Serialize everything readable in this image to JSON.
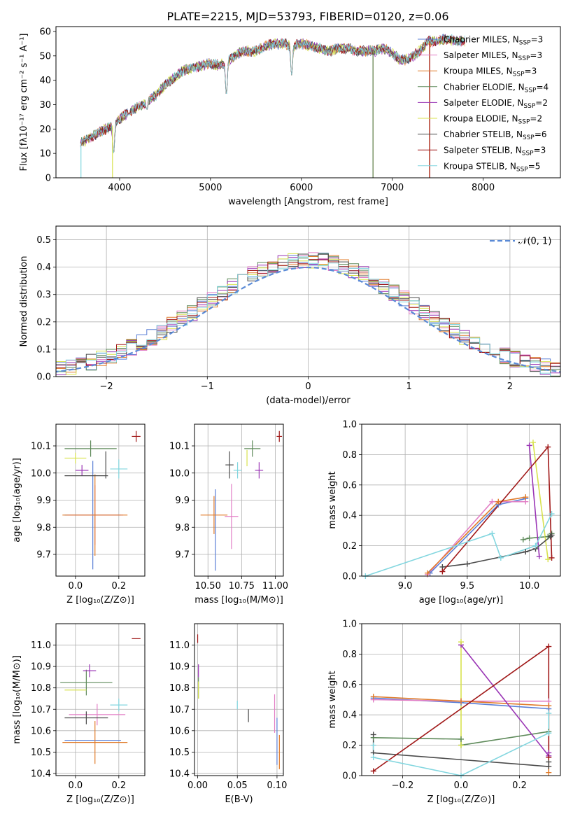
{
  "title": "PLATE=2215, MJD=53793, FIBERID=0120, z=0.06",
  "colors": {
    "Chabrier MILES": "#5a7fd6",
    "Salpeter MILES": "#e27fc6",
    "Kroupa MILES": "#e07b2a",
    "Chabrier ELODIE": "#5e8a5a",
    "Salpeter ELODIE": "#9a35b5",
    "Kroupa ELODIE": "#d8e24e",
    "Chabrier STELIB": "#4a4a4a",
    "Salpeter STELIB": "#a01818",
    "Kroupa STELIB": "#82d6df"
  },
  "chart_data": [
    {
      "id": "spectrum",
      "type": "line",
      "xlabel": "wavelength [Angstrom, rest frame]",
      "ylabel": "Flux [fλ10⁻¹⁷ erg cm⁻² s⁻¹ A⁻¹]",
      "xlim": [
        3300,
        8850
      ],
      "ylim": [
        0,
        62
      ],
      "xticks": [
        4000,
        5000,
        6000,
        7000,
        8000
      ],
      "yticks": [
        0,
        10,
        20,
        30,
        40,
        50,
        60
      ],
      "grid": false,
      "legend": "right",
      "legend_entries": [
        {
          "model": "Chabrier MILES",
          "nssp": "3"
        },
        {
          "model": "Salpeter MILES",
          "nssp": "3"
        },
        {
          "model": "Kroupa MILES",
          "nssp": "3"
        },
        {
          "model": "Chabrier ELODIE",
          "nssp": "4"
        },
        {
          "model": "Salpeter ELODIE",
          "nssp": "2"
        },
        {
          "model": "Kroupa ELODIE",
          "nssp": "2"
        },
        {
          "model": "Chabrier STELIB",
          "nssp": "6"
        },
        {
          "model": "Salpeter STELIB",
          "nssp": "3"
        },
        {
          "model": "Kroupa STELIB",
          "nssp": "5"
        }
      ],
      "continuum": {
        "x": [
          3570,
          3650,
          3750,
          3850,
          3950,
          4000,
          4100,
          4200,
          4300,
          4400,
          4500,
          4600,
          4700,
          4800,
          4900,
          5000,
          5100,
          5200,
          5300,
          5400,
          5500,
          5600,
          5700,
          5800,
          5900,
          6000,
          6100,
          6200,
          6300,
          6400,
          6500,
          6600,
          6700,
          6800,
          6900,
          7000,
          7100,
          7200,
          7300,
          7400,
          7500,
          7600,
          7700,
          7800
        ],
        "y": [
          14,
          16,
          18,
          20,
          22,
          24,
          27,
          29,
          31,
          34,
          38,
          41,
          44,
          45,
          46,
          47,
          46,
          48,
          51,
          52,
          52,
          54,
          55,
          55,
          54,
          55,
          54,
          53,
          52,
          53,
          53,
          52,
          52,
          52,
          53,
          51,
          48,
          49,
          52,
          56,
          56,
          57,
          56,
          56
        ]
      },
      "absorption_features": [
        {
          "x": 3934,
          "y": 10
        },
        {
          "x": 4102,
          "y": 26
        },
        {
          "x": 4300,
          "y": 28
        },
        {
          "x": 5175,
          "y": 34
        },
        {
          "x": 5893,
          "y": 42
        }
      ],
      "spikes": [
        {
          "model": "Kroupa STELIB",
          "x": 3575,
          "y_min": 0
        },
        {
          "model": "Kroupa ELODIE",
          "x": 3922,
          "y_min": 0
        },
        {
          "model": "Kroupa MILES",
          "x": 6788,
          "y_min": 0
        },
        {
          "model": "Chabrier ELODIE",
          "x": 6788,
          "y_min": 0
        },
        {
          "model": "Kroupa MILES",
          "x": 7410,
          "y_min": 0
        },
        {
          "model": "Salpeter STELIB",
          "x": 7412,
          "y_min": 0
        }
      ]
    },
    {
      "id": "residuals",
      "type": "histogram",
      "xlabel": "(data-model)/error",
      "ylabel": "Normed distribution",
      "xlim": [
        -2.5,
        2.5
      ],
      "ylim": [
        0,
        0.55
      ],
      "xticks": [
        -2,
        -1,
        0,
        1,
        2
      ],
      "yticks": [
        0,
        0.1,
        0.2,
        0.3,
        0.4,
        0.5
      ],
      "grid": true,
      "bin_width": 0.1,
      "reference_label": "𝒩(0, 1)",
      "reference_curve": {
        "mean": 0,
        "sigma": 1
      }
    },
    {
      "id": "age-vs-Z",
      "type": "errorbar",
      "xlabel": "Z [log₁₀(Z/Z⊙)]",
      "ylabel": "age  [log₁₀(age/yr)]",
      "xlim": [
        -0.09,
        0.32
      ],
      "ylim": [
        9.62,
        10.18
      ],
      "xticks": [
        0.0,
        0.2
      ],
      "yticks": [
        9.7,
        9.8,
        9.9,
        10.0,
        10.1
      ],
      "grid": true,
      "points": [
        {
          "model": "Chabrier MILES",
          "x": 0.08,
          "xerr": 0.13,
          "y": 9.845,
          "yerr": 0.2
        },
        {
          "model": "Salpeter MILES",
          "x": 0.09,
          "xerr": 0.13,
          "y": 9.845,
          "yerr": 0.11
        },
        {
          "model": "Kroupa MILES",
          "x": 0.09,
          "xerr": 0.15,
          "y": 9.845,
          "yerr": 0.15
        },
        {
          "model": "Chabrier ELODIE",
          "x": 0.07,
          "xerr": 0.12,
          "y": 10.09,
          "yerr": 0.03
        },
        {
          "model": "Salpeter ELODIE",
          "x": 0.03,
          "xerr": 0.03,
          "y": 10.01,
          "yerr": 0.02
        },
        {
          "model": "Kroupa ELODIE",
          "x": 0.0,
          "xerr": 0.05,
          "y": 10.055,
          "yerr": 0.02
        },
        {
          "model": "Chabrier STELIB",
          "x": 0.05,
          "xerr": 0.1,
          "y": 9.99,
          "yerr": 0.0
        },
        {
          "model": "Chabrier STELIB",
          "x": 0.14,
          "xerr": 0.0,
          "y": 10.03,
          "yerr": 0.05
        },
        {
          "model": "Salpeter STELIB",
          "x": 0.28,
          "xerr": 0.02,
          "y": 10.135,
          "yerr": 0.02
        },
        {
          "model": "Kroupa STELIB",
          "x": 0.2,
          "xerr": 0.04,
          "y": 10.015,
          "yerr": 0.035
        }
      ]
    },
    {
      "id": "age-vs-mass",
      "type": "errorbar",
      "xlabel": "mass [log₁₀(M/M⊙)]",
      "ylabel": "",
      "xlim": [
        10.4,
        11.06
      ],
      "ylim": [
        9.62,
        10.18
      ],
      "xticks": [
        10.5,
        10.75,
        11.0
      ],
      "yticks": [
        9.7,
        9.8,
        9.9,
        10.0,
        10.1
      ],
      "grid": true,
      "points": [
        {
          "model": "Chabrier MILES",
          "x": 10.555,
          "xerr": 0.0,
          "y": 9.79,
          "yerr": 0.15
        },
        {
          "model": "Salpeter MILES",
          "x": 10.675,
          "xerr": 0.05,
          "y": 9.84,
          "yerr": 0.12
        },
        {
          "model": "Kroupa MILES",
          "x": 10.545,
          "xerr": 0.1,
          "y": 9.845,
          "yerr": 0.07
        },
        {
          "model": "Chabrier ELODIE",
          "x": 10.83,
          "xerr": 0.06,
          "y": 10.09,
          "yerr": 0.03
        },
        {
          "model": "Salpeter ELODIE",
          "x": 10.88,
          "xerr": 0.03,
          "y": 10.01,
          "yerr": 0.03
        },
        {
          "model": "Kroupa ELODIE",
          "x": 10.79,
          "xerr": 0.0,
          "y": 10.055,
          "yerr": 0.03
        },
        {
          "model": "Chabrier STELIB",
          "x": 10.66,
          "xerr": 0.03,
          "y": 10.03,
          "yerr": 0.05
        },
        {
          "model": "Salpeter STELIB",
          "x": 11.03,
          "xerr": 0.02,
          "y": 10.135,
          "yerr": 0.02
        },
        {
          "model": "Kroupa STELIB",
          "x": 10.72,
          "xerr": 0.03,
          "y": 10.01,
          "yerr": 0.03
        }
      ]
    },
    {
      "id": "mass-weight-vs-age",
      "type": "line",
      "xlabel": "age  [log₁₀(age/yr)]",
      "ylabel": "mass weight",
      "xlim": [
        8.65,
        10.25
      ],
      "ylim": [
        0,
        1.0
      ],
      "xticks": [
        9.0,
        9.5,
        10.0
      ],
      "yticks": [
        0.0,
        0.2,
        0.4,
        0.6,
        0.8,
        1.0
      ],
      "grid": true,
      "series": [
        {
          "model": "Chabrier MILES",
          "x": [
            9.2,
            9.75,
            9.97
          ],
          "y": [
            0.02,
            0.47,
            0.51
          ]
        },
        {
          "model": "Salpeter MILES",
          "x": [
            9.18,
            9.7,
            9.97
          ],
          "y": [
            0.01,
            0.49,
            0.49
          ]
        },
        {
          "model": "Kroupa MILES",
          "x": [
            9.18,
            9.75,
            9.97
          ],
          "y": [
            0.02,
            0.49,
            0.52
          ]
        },
        {
          "model": "Chabrier ELODIE",
          "x": [
            9.95,
            10.0,
            10.15,
            10.18
          ],
          "y": [
            0.24,
            0.25,
            0.26,
            0.28
          ]
        },
        {
          "model": "Salpeter ELODIE",
          "x": [
            10.0,
            10.08
          ],
          "y": [
            0.86,
            0.13
          ]
        },
        {
          "model": "Kroupa ELODIE",
          "x": [
            10.03,
            10.15
          ],
          "y": [
            0.88,
            0.11
          ]
        },
        {
          "model": "Chabrier STELIB",
          "x": [
            9.3,
            9.5,
            9.97,
            10.05,
            10.17,
            10.18
          ],
          "y": [
            0.06,
            0.08,
            0.16,
            0.18,
            0.26,
            0.27
          ]
        },
        {
          "model": "Salpeter STELIB",
          "x": [
            9.3,
            10.15,
            10.18
          ],
          "y": [
            0.03,
            0.85,
            0.12
          ]
        },
        {
          "model": "Kroupa STELIB",
          "x": [
            8.68,
            9.7,
            9.77,
            10.05,
            10.18
          ],
          "y": [
            0.0,
            0.28,
            0.12,
            0.2,
            0.41
          ]
        }
      ]
    },
    {
      "id": "mass-vs-Z",
      "type": "errorbar",
      "xlabel": "Z [log₁₀(Z/Z⊙)]",
      "ylabel": "mass [log₁₀(M/M⊙)]",
      "xlim": [
        -0.09,
        0.32
      ],
      "ylim": [
        10.39,
        11.1
      ],
      "xticks": [
        0.0,
        0.2
      ],
      "yticks": [
        10.4,
        10.5,
        10.6,
        10.7,
        10.8,
        10.9,
        11.0
      ],
      "grid": true,
      "points": [
        {
          "model": "Chabrier MILES",
          "x": 0.08,
          "xerr": 0.13,
          "y": 10.555,
          "yerr": 0.0
        },
        {
          "model": "Salpeter MILES",
          "x": 0.1,
          "xerr": 0.13,
          "y": 10.675,
          "yerr": 0.05
        },
        {
          "model": "Kroupa MILES",
          "x": 0.09,
          "xerr": 0.15,
          "y": 10.545,
          "yerr": 0.1
        },
        {
          "model": "Chabrier ELODIE",
          "x": 0.05,
          "xerr": 0.12,
          "y": 10.825,
          "yerr": 0.06
        },
        {
          "model": "Salpeter ELODIE",
          "x": 0.065,
          "xerr": 0.03,
          "y": 10.88,
          "yerr": 0.03
        },
        {
          "model": "Kroupa ELODIE",
          "x": 0.0,
          "xerr": 0.05,
          "y": 10.79,
          "yerr": 0.0
        },
        {
          "model": "Chabrier STELIB",
          "x": 0.05,
          "xerr": 0.1,
          "y": 10.66,
          "yerr": 0.03
        },
        {
          "model": "Salpeter STELIB",
          "x": 0.28,
          "xerr": 0.02,
          "y": 11.03,
          "yerr": 0.0
        },
        {
          "model": "Kroupa STELIB",
          "x": 0.2,
          "xerr": 0.04,
          "y": 10.72,
          "yerr": 0.03
        }
      ]
    },
    {
      "id": "mass-vs-EBV",
      "type": "errorbar",
      "xlabel": "E(B-V)",
      "ylabel": "",
      "xlim": [
        -0.004,
        0.108
      ],
      "ylim": [
        10.39,
        11.1
      ],
      "xticks": [
        0.0,
        0.05,
        0.1
      ],
      "yticks": [
        10.4,
        10.5,
        10.6,
        10.7,
        10.8,
        10.9,
        11.0
      ],
      "grid": true,
      "points": [
        {
          "model": "Chabrier MILES",
          "x": 0.1,
          "xerr": 0.0,
          "y": 10.55,
          "yerr": 0.11
        },
        {
          "model": "Salpeter MILES",
          "x": 0.097,
          "xerr": 0.0,
          "y": 10.68,
          "yerr": 0.09
        },
        {
          "model": "Kroupa MILES",
          "x": 0.103,
          "xerr": 0.0,
          "y": 10.5,
          "yerr": 0.08
        },
        {
          "model": "Chabrier ELODIE",
          "x": 0.001,
          "xerr": 0.0,
          "y": 10.8,
          "yerr": 0.05
        },
        {
          "model": "Salpeter ELODIE",
          "x": 0.001,
          "xerr": 0.0,
          "y": 10.88,
          "yerr": 0.03
        },
        {
          "model": "Kroupa ELODIE",
          "x": 0.001,
          "xerr": 0.0,
          "y": 10.79,
          "yerr": 0.04
        },
        {
          "model": "Chabrier STELIB",
          "x": 0.064,
          "xerr": 0.0,
          "y": 10.67,
          "yerr": 0.03
        },
        {
          "model": "Salpeter STELIB",
          "x": 0.0,
          "xerr": 0.0,
          "y": 11.03,
          "yerr": 0.02
        },
        {
          "model": "Kroupa STELIB",
          "x": 0.05,
          "xerr": 0.0,
          "y": 10.72,
          "yerr": 0.02
        }
      ]
    },
    {
      "id": "mass-weight-vs-Z",
      "type": "line",
      "xlabel": "Z [log₁₀(Z/Z⊙)]",
      "ylabel": "mass weight",
      "xlim": [
        -0.34,
        0.34
      ],
      "ylim": [
        0,
        1.0
      ],
      "xticks": [
        -0.2,
        0.0,
        0.2
      ],
      "yticks": [
        0.0,
        0.2,
        0.4,
        0.6,
        0.8,
        1.0
      ],
      "grid": true,
      "series": [
        {
          "model": "Chabrier MILES",
          "x": [
            -0.3,
            0.0,
            0.3
          ],
          "y": [
            0.51,
            0.48,
            0.44
          ]
        },
        {
          "model": "Salpeter MILES",
          "x": [
            -0.3,
            0.0,
            0.3
          ],
          "y": [
            0.5,
            0.49,
            0.49
          ]
        },
        {
          "model": "Kroupa MILES",
          "x": [
            -0.3,
            0.0,
            0.3,
            0.3
          ],
          "y": [
            0.52,
            0.49,
            0.46,
            0.02
          ]
        },
        {
          "model": "Chabrier ELODIE",
          "x": [
            -0.3,
            0.0,
            0.0,
            0.3
          ],
          "y": [
            0.25,
            0.24,
            0.2,
            0.29
          ]
        },
        {
          "model": "Salpeter ELODIE",
          "x": [
            0.0,
            0.3,
            0.3
          ],
          "y": [
            0.86,
            0.13,
            0.15
          ]
        },
        {
          "model": "Kroupa ELODIE",
          "x": [
            0.0,
            0.0
          ],
          "y": [
            0.88,
            0.2
          ]
        },
        {
          "model": "Chabrier STELIB",
          "x": [
            -0.3,
            -0.3,
            0.3,
            0.3
          ],
          "y": [
            0.27,
            0.15,
            0.06,
            0.09
          ]
        },
        {
          "model": "Salpeter STELIB",
          "x": [
            -0.3,
            0.3,
            0.3
          ],
          "y": [
            0.03,
            0.85,
            0.12
          ]
        },
        {
          "model": "Kroupa STELIB",
          "x": [
            -0.3,
            -0.3,
            0.0,
            0.3,
            0.3
          ],
          "y": [
            0.2,
            0.12,
            0.0,
            0.28,
            0.41
          ]
        }
      ]
    }
  ]
}
